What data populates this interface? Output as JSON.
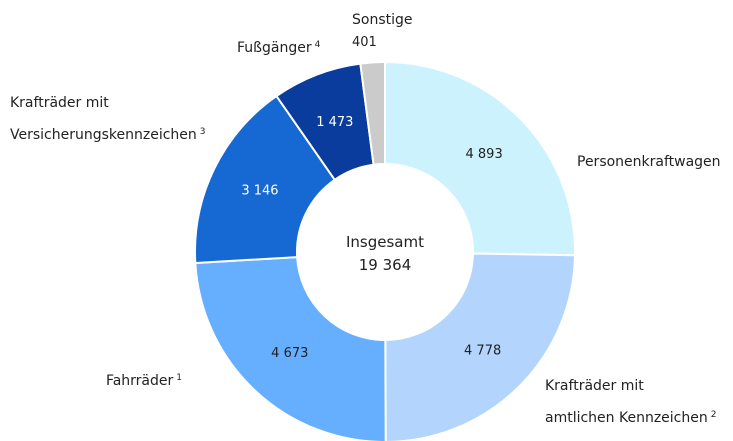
{
  "chart_data": {
    "type": "donut",
    "categories": [
      "Personenkraftwagen",
      "Krafträder mit\namtlichen Kennzeichen",
      "Fahrräder",
      "Krafträder mit\nVersicherungskennzeichen",
      "Fußgänger",
      "Sonstige"
    ],
    "footnotes": [
      null,
      "2",
      "1",
      "3",
      "4",
      null
    ],
    "values": [
      4893,
      4778,
      4673,
      3146,
      1473,
      401
    ],
    "value_labels": [
      "4 893",
      "4 778",
      "4 673",
      "3 146",
      "1 473",
      "401"
    ],
    "colors": [
      "#ccf3fd",
      "#b3d5fd",
      "#66aefe",
      "#1668d2",
      "#0a3c9e",
      "#cbcbcb"
    ],
    "center_title": "Insgesamt",
    "total": {
      "value": 19364,
      "label": "19 364"
    }
  }
}
